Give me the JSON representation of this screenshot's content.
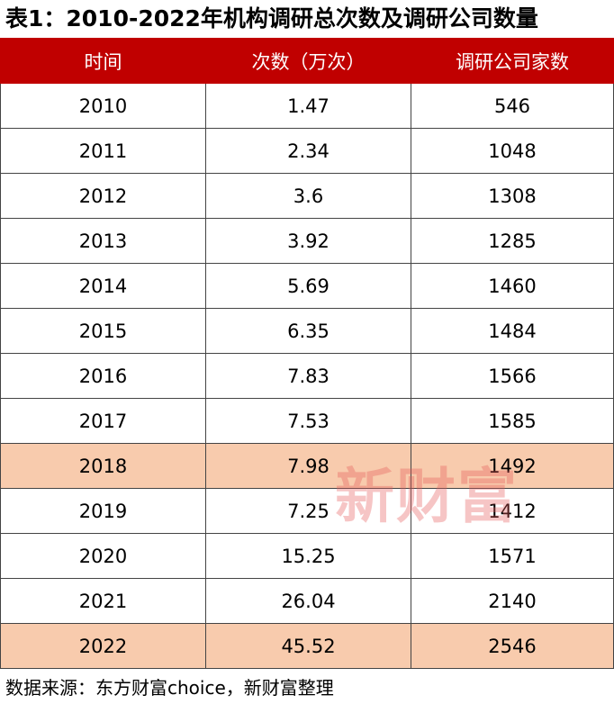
{
  "title": "表1：2010-2022年机构调研总次数及调研公司数量",
  "table": {
    "header": [
      "时间",
      "次数（万次）",
      "调研公司家数"
    ],
    "rows": [
      [
        "2010",
        "1.47",
        "546"
      ],
      [
        "2011",
        "2.34",
        "1048"
      ],
      [
        "2012",
        "3.6",
        "1308"
      ],
      [
        "2013",
        "3.92",
        "1285"
      ],
      [
        "2014",
        "5.69",
        "1460"
      ],
      [
        "2015",
        "6.35",
        "1484"
      ],
      [
        "2016",
        "7.83",
        "1566"
      ],
      [
        "2017",
        "7.53",
        "1585"
      ],
      [
        "2018",
        "7.98",
        "1492"
      ],
      [
        "2019",
        "7.25",
        "1412"
      ],
      [
        "2020",
        "15.25",
        "1571"
      ],
      [
        "2021",
        "26.04",
        "2140"
      ],
      [
        "2022",
        "45.52",
        "2546"
      ]
    ]
  },
  "watermark": "新财富",
  "note": "数据来源：东方财富choice，新财富整理"
}
